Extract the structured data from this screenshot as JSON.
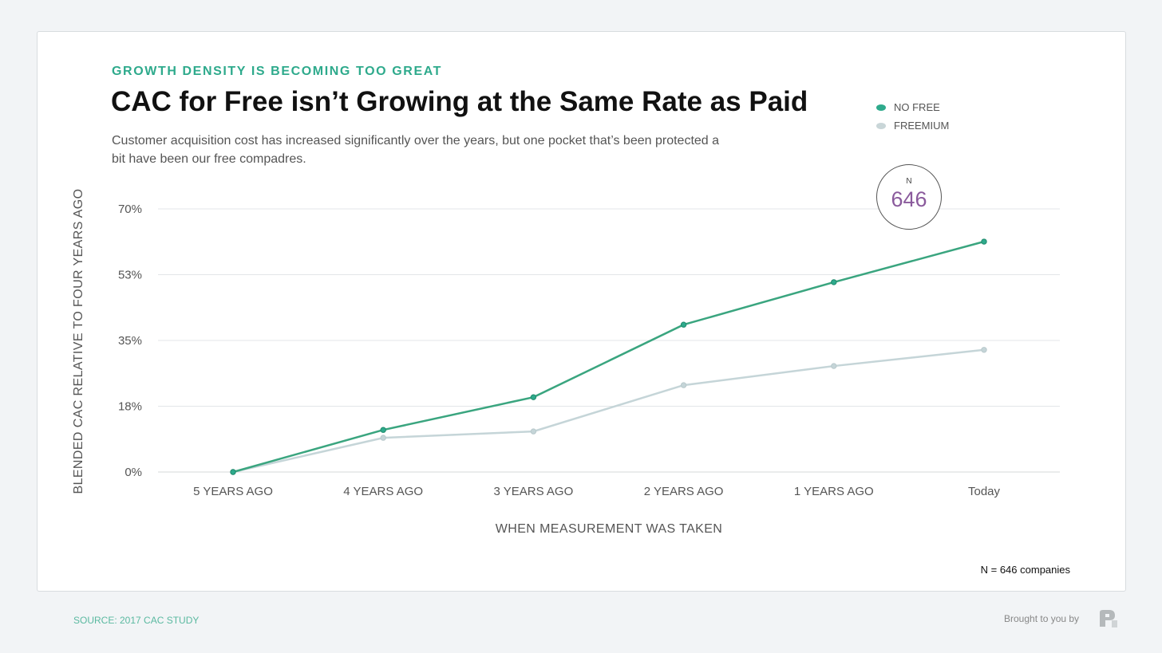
{
  "kicker": "GROWTH DENSITY IS BECOMING TOO GREAT",
  "title": "CAC for Free isn’t Growing at the Same Rate as Paid",
  "subtitle": "Customer acquisition cost has increased significantly over the years, but one pocket that’s been protected a bit have been our free compadres.",
  "badge": {
    "label": "N",
    "value": "646"
  },
  "note": "N = 646 companies",
  "source": "SOURCE: 2017 CAC STUDY",
  "brought_by": "Brought to you by",
  "colors": {
    "no_free": "#3aa57f",
    "freemium": "#c5d5d8",
    "accent": "#2eaa8c",
    "badge": "#8a5a9c"
  },
  "chart_data": {
    "type": "line",
    "xlabel": "WHEN MEASUREMENT WAS TAKEN",
    "ylabel": "BLENDED CAC RELATIVE TO FOUR YEARS AGO",
    "categories": [
      "5 YEARS AGO",
      "4 YEARS AGO",
      "3 YEARS AGO",
      "2 YEARS AGO",
      "1 YEARS AGO",
      "Today"
    ],
    "yticks": [
      "0%",
      "18%",
      "35%",
      "53%",
      "70%"
    ],
    "ylim": [
      0,
      70
    ],
    "grid": true,
    "legend_position": "top-right",
    "series": [
      {
        "name": "NO FREE",
        "values": [
          0,
          11.2,
          19.9,
          39.2,
          50.5,
          61.3
        ]
      },
      {
        "name": "FREEMIUM",
        "values": [
          0,
          9.1,
          10.8,
          23.1,
          28.2,
          32.5
        ]
      }
    ]
  }
}
